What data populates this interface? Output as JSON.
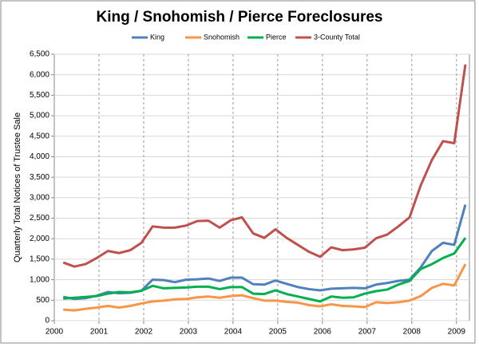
{
  "chart_data": {
    "type": "line",
    "title": "King / Snohomish / Pierce Foreclosures",
    "y_label": "Quarterly Total Notices of Trustee Sale",
    "x": [
      2000.2,
      2000.45,
      2000.7,
      2000.95,
      2001.2,
      2001.45,
      2001.7,
      2001.95,
      2002.2,
      2002.45,
      2002.7,
      2002.95,
      2003.2,
      2003.45,
      2003.7,
      2003.95,
      2004.2,
      2004.45,
      2004.7,
      2004.95,
      2005.2,
      2005.45,
      2005.7,
      2005.95,
      2006.2,
      2006.45,
      2006.7,
      2006.95,
      2007.2,
      2007.45,
      2007.7,
      2007.95,
      2008.2,
      2008.45,
      2008.7,
      2008.95,
      2009.2
    ],
    "series": [
      {
        "name": "King",
        "color": "#4f81bd",
        "values": [
          580,
          530,
          550,
          610,
          700,
          670,
          680,
          730,
          1000,
          990,
          940,
          1000,
          1010,
          1030,
          970,
          1050,
          1050,
          890,
          880,
          980,
          900,
          820,
          770,
          740,
          780,
          790,
          800,
          790,
          880,
          920,
          970,
          1000,
          1300,
          1700,
          1900,
          1850,
          2830
        ]
      },
      {
        "name": "Snohomish",
        "color": "#f79646",
        "values": [
          270,
          250,
          290,
          320,
          360,
          320,
          360,
          420,
          470,
          490,
          520,
          530,
          570,
          590,
          560,
          600,
          620,
          550,
          490,
          490,
          460,
          440,
          380,
          350,
          400,
          360,
          350,
          330,
          450,
          430,
          450,
          490,
          600,
          800,
          900,
          860,
          1380
        ]
      },
      {
        "name": "Pierce",
        "color": "#00b050",
        "values": [
          540,
          560,
          580,
          600,
          660,
          700,
          690,
          730,
          850,
          790,
          800,
          810,
          830,
          830,
          770,
          820,
          820,
          660,
          650,
          740,
          650,
          590,
          530,
          470,
          590,
          560,
          570,
          660,
          720,
          760,
          880,
          970,
          1260,
          1380,
          1530,
          1640,
          2020
        ]
      },
      {
        "name": "3-County Total",
        "color": "#c0504d",
        "values": [
          1420,
          1320,
          1380,
          1530,
          1700,
          1650,
          1720,
          1900,
          2300,
          2270,
          2270,
          2320,
          2430,
          2440,
          2270,
          2450,
          2520,
          2130,
          2020,
          2230,
          2020,
          1850,
          1680,
          1560,
          1790,
          1720,
          1740,
          1780,
          2010,
          2100,
          2300,
          2520,
          3300,
          3920,
          4380,
          4330,
          6250
        ]
      }
    ],
    "xlim": [
      2000,
      2009.29
    ],
    "xticks": [
      2000,
      2001,
      2002,
      2003,
      2004,
      2005,
      2006,
      2007,
      2008,
      2009
    ],
    "ylim": [
      0,
      6500
    ],
    "yticks": [
      0,
      500,
      {
        "value": 1000,
        "label": "1,000"
      },
      {
        "value": 1500,
        "label": "1,500"
      },
      {
        "value": 2000,
        "label": "2,000"
      },
      {
        "value": 2500,
        "label": "2,500"
      },
      {
        "value": 3000,
        "label": "3,000"
      },
      {
        "value": 3500,
        "label": "3,500"
      },
      {
        "value": 4000,
        "label": "4,000"
      },
      {
        "value": 4500,
        "label": "4,500"
      },
      {
        "value": 5000,
        "label": "5,000"
      },
      {
        "value": 5500,
        "label": "5,500"
      },
      {
        "value": 6000,
        "label": "6,000"
      },
      {
        "value": 6500,
        "label": "6,500"
      }
    ],
    "grid": true,
    "legend": "top"
  }
}
